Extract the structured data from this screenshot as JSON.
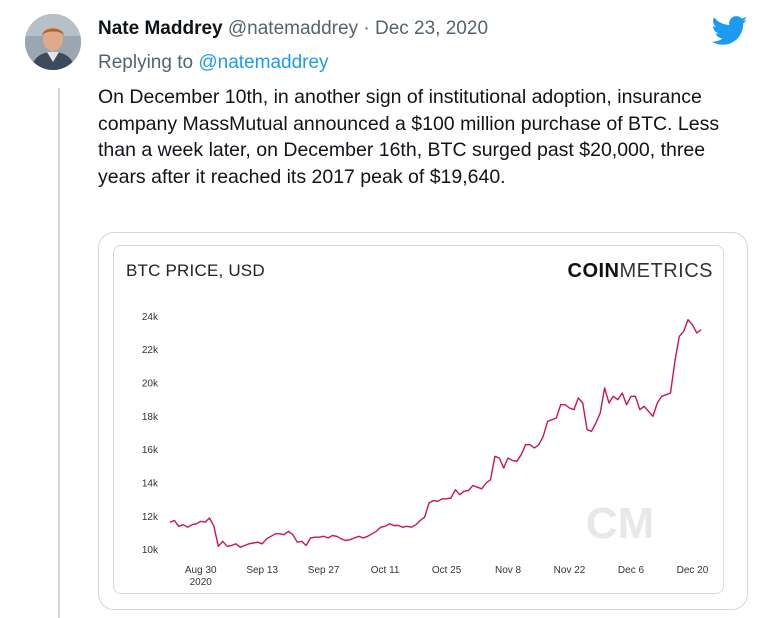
{
  "tweet": {
    "author_name": "Nate Maddrey",
    "handle": "@natemaddrey",
    "separator": "·",
    "date": "Dec 23, 2020",
    "replying_prefix": "Replying to",
    "replying_to": "@natemaddrey",
    "text": "On December 10th, in another sign of institutional adoption, insurance company MassMutual announced a $100 million purchase of BTC. Less than a week later, on December 16th, BTC surged past $20,000, three years after it reached its 2017 peak of $19,640.",
    "icons": {
      "logo": "twitter-bird-icon",
      "avatar": "avatar-photo"
    },
    "colors": {
      "accent": "#1d9bf0",
      "line": "#c8174d"
    }
  },
  "chart": {
    "brand_bold": "COIN",
    "brand_rest": "METRICS",
    "watermark": "CM"
  },
  "chart_data": {
    "type": "line",
    "title": "BTC PRICE, USD",
    "xlabel": "",
    "ylabel": "",
    "ylim": [
      9500,
      24500
    ],
    "y_ticks": [
      {
        "value": 10000,
        "label": "10k"
      },
      {
        "value": 12000,
        "label": "12k"
      },
      {
        "value": 14000,
        "label": "14k"
      },
      {
        "value": 16000,
        "label": "16k"
      },
      {
        "value": 18000,
        "label": "18k"
      },
      {
        "value": 20000,
        "label": "20k"
      },
      {
        "value": 22000,
        "label": "22k"
      },
      {
        "value": 24000,
        "label": "24k"
      }
    ],
    "x_ticks": [
      {
        "date": "2020-08-30",
        "label": "Aug 30",
        "sublabel": "2020"
      },
      {
        "date": "2020-09-13",
        "label": "Sep 13"
      },
      {
        "date": "2020-09-27",
        "label": "Sep 27"
      },
      {
        "date": "2020-10-11",
        "label": "Oct 11"
      },
      {
        "date": "2020-10-25",
        "label": "Oct 25"
      },
      {
        "date": "2020-11-08",
        "label": "Nov 8"
      },
      {
        "date": "2020-11-22",
        "label": "Nov 22"
      },
      {
        "date": "2020-12-06",
        "label": "Dec 6"
      },
      {
        "date": "2020-12-20",
        "label": "Dec 20"
      }
    ],
    "grid": false,
    "series": [
      {
        "x": [
          "2020-08-23",
          "2020-08-24",
          "2020-08-25",
          "2020-08-26",
          "2020-08-27",
          "2020-08-28",
          "2020-08-29",
          "2020-08-30",
          "2020-08-31",
          "2020-09-01",
          "2020-09-02",
          "2020-09-03",
          "2020-09-04",
          "2020-09-05",
          "2020-09-06",
          "2020-09-07",
          "2020-09-08",
          "2020-09-09",
          "2020-09-10",
          "2020-09-11",
          "2020-09-12",
          "2020-09-13",
          "2020-09-14",
          "2020-09-15",
          "2020-09-16",
          "2020-09-17",
          "2020-09-18",
          "2020-09-19",
          "2020-09-20",
          "2020-09-21",
          "2020-09-22",
          "2020-09-23",
          "2020-09-24",
          "2020-09-25",
          "2020-09-26",
          "2020-09-27",
          "2020-09-28",
          "2020-09-29",
          "2020-09-30",
          "2020-10-01",
          "2020-10-02",
          "2020-10-03",
          "2020-10-04",
          "2020-10-05",
          "2020-10-06",
          "2020-10-07",
          "2020-10-08",
          "2020-10-09",
          "2020-10-10",
          "2020-10-11",
          "2020-10-12",
          "2020-10-13",
          "2020-10-14",
          "2020-10-15",
          "2020-10-16",
          "2020-10-17",
          "2020-10-18",
          "2020-10-19",
          "2020-10-20",
          "2020-10-21",
          "2020-10-22",
          "2020-10-23",
          "2020-10-24",
          "2020-10-25",
          "2020-10-26",
          "2020-10-27",
          "2020-10-28",
          "2020-10-29",
          "2020-10-30",
          "2020-10-31",
          "2020-11-01",
          "2020-11-02",
          "2020-11-03",
          "2020-11-04",
          "2020-11-05",
          "2020-11-06",
          "2020-11-07",
          "2020-11-08",
          "2020-11-09",
          "2020-11-10",
          "2020-11-11",
          "2020-11-12",
          "2020-11-13",
          "2020-11-14",
          "2020-11-15",
          "2020-11-16",
          "2020-11-17",
          "2020-11-18",
          "2020-11-19",
          "2020-11-20",
          "2020-11-21",
          "2020-11-22",
          "2020-11-23",
          "2020-11-24",
          "2020-11-25",
          "2020-11-26",
          "2020-11-27",
          "2020-11-28",
          "2020-11-29",
          "2020-11-30",
          "2020-12-01",
          "2020-12-02",
          "2020-12-03",
          "2020-12-04",
          "2020-12-05",
          "2020-12-06",
          "2020-12-07",
          "2020-12-08",
          "2020-12-09",
          "2020-12-10",
          "2020-12-11",
          "2020-12-12",
          "2020-12-13",
          "2020-12-14",
          "2020-12-15",
          "2020-12-16",
          "2020-12-17",
          "2020-12-18",
          "2020-12-19",
          "2020-12-20",
          "2020-12-21",
          "2020-12-22"
        ],
        "y": [
          11650,
          11750,
          11400,
          11500,
          11350,
          11500,
          11550,
          11700,
          11650,
          11900,
          11400,
          10200,
          10500,
          10200,
          10250,
          10350,
          10150,
          10250,
          10350,
          10400,
          10450,
          10350,
          10650,
          10800,
          10950,
          10950,
          10900,
          11100,
          10900,
          10450,
          10500,
          10250,
          10700,
          10750,
          10750,
          10800,
          10700,
          10850,
          10800,
          10650,
          10550,
          10600,
          10700,
          10800,
          10700,
          10800,
          10950,
          11100,
          11350,
          11400,
          11550,
          11450,
          11450,
          11350,
          11400,
          11350,
          11500,
          11750,
          11950,
          12800,
          12950,
          12900,
          13050,
          13050,
          13100,
          13600,
          13300,
          13500,
          13550,
          13850,
          13750,
          13650,
          14000,
          14200,
          15600,
          15500,
          14900,
          15500,
          15350,
          15300,
          15700,
          16300,
          16300,
          16100,
          16300,
          16800,
          17700,
          17800,
          17900,
          18700,
          18700,
          18500,
          18400,
          19100,
          18800,
          17200,
          17100,
          17600,
          18200,
          19700,
          18800,
          19200,
          19000,
          19400,
          18700,
          19200,
          19200,
          18400,
          18600,
          18300,
          18000,
          18800,
          19200,
          19300,
          19400,
          21300,
          22800,
          23100,
          23800,
          23500,
          23000,
          23200
        ]
      }
    ]
  }
}
